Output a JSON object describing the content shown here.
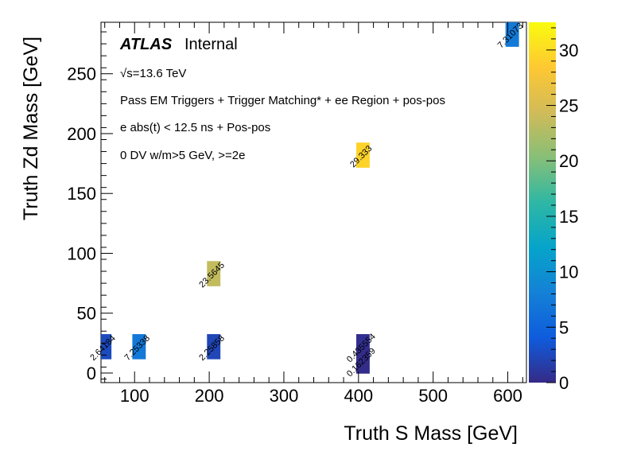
{
  "chart_data": {
    "type": "heatmap",
    "xlabel": "Truth S Mass [GeV]",
    "ylabel": "Truth Zd Mass [GeV]",
    "xlim": [
      55,
      625
    ],
    "ylim": [
      -8,
      293
    ],
    "zlim": [
      0,
      32.5
    ],
    "x_ticks": [
      100,
      200,
      300,
      400,
      500,
      600
    ],
    "y_ticks": [
      0,
      50,
      100,
      150,
      200,
      250
    ],
    "z_ticks": [
      0,
      5,
      10,
      15,
      20,
      25,
      30
    ],
    "x_bin_width": 18,
    "y_bin_width": 21,
    "cells": [
      {
        "x": 60,
        "y": 22,
        "value": 2.64184,
        "label": "2.64184"
      },
      {
        "x": 106,
        "y": 22,
        "value": 7.25338,
        "label": "7.25338"
      },
      {
        "x": 206,
        "y": 22,
        "value": 2.25858,
        "label": "2.25858"
      },
      {
        "x": 206,
        "y": 83,
        "value": 23.5645,
        "label": "23.5645"
      },
      {
        "x": 406,
        "y": 22,
        "value": 0.435554,
        "label": "0.435554"
      },
      {
        "x": 406,
        "y": 10,
        "value": 0.162359,
        "label": "0.162359"
      },
      {
        "x": 406,
        "y": 182,
        "value": 29.333,
        "label": "29.333"
      },
      {
        "x": 606,
        "y": 283,
        "value": 7.31073,
        "label": "7.31073"
      }
    ]
  },
  "annotations": {
    "atlas": "ATLAS",
    "internal": "Internal",
    "energy": "√s=13.6 TeV",
    "line1": "Pass EM Triggers + Trigger Matching* + ee Region + pos-pos",
    "line2": "e abs(t) < 12.5 ns + Pos-pos",
    "line3": "0 DV w/m>5 GeV, >=2e"
  },
  "colors": {
    "palette": [
      "#352a87",
      "#0f5cdd",
      "#1481d6",
      "#06a4ca",
      "#2eb7a4",
      "#87bf77",
      "#d1bb59",
      "#fec832",
      "#f9fb0e"
    ],
    "axis": "#000000",
    "background": "#ffffff"
  }
}
